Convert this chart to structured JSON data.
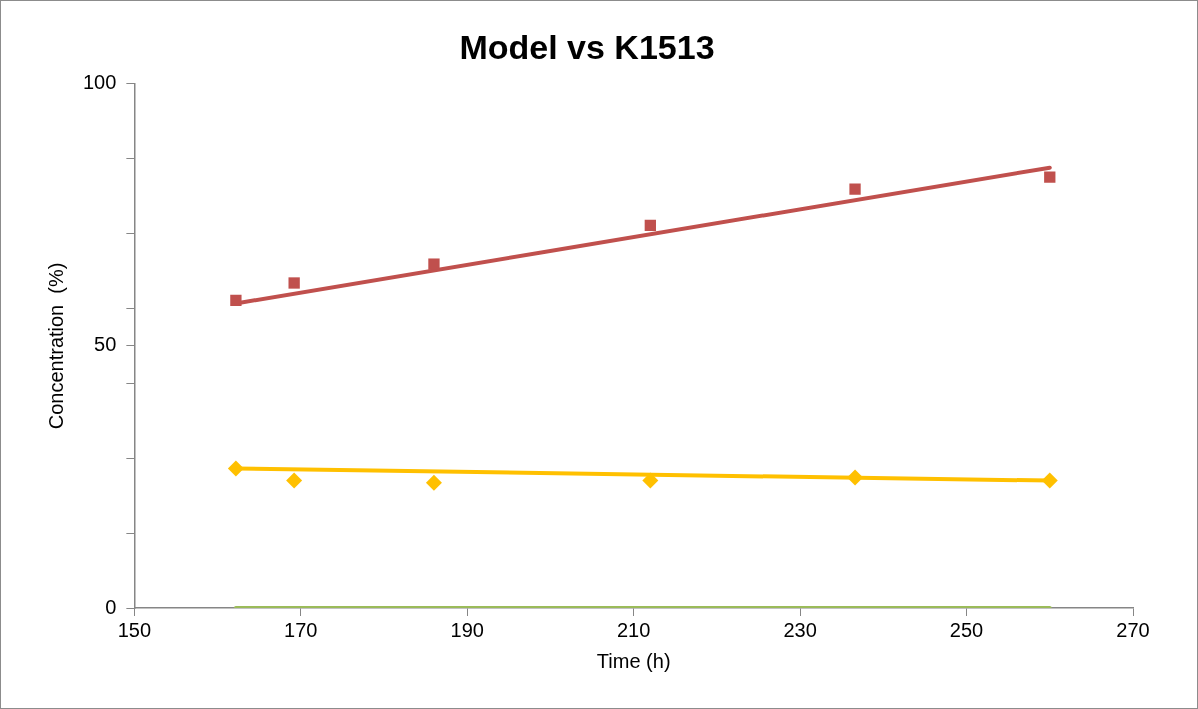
{
  "chart_data": {
    "type": "scatter",
    "title": "Model vs K1513",
    "xlabel": "Time (h)",
    "ylabel": "Concentration  (%)",
    "xlim": [
      150,
      270
    ],
    "xticks": [
      150,
      170,
      190,
      210,
      230,
      250,
      270
    ],
    "ylim": [
      0,
      100
    ],
    "yticks": [
      0,
      {
        "value": 14.29,
        "label": null
      },
      {
        "value": 28.57,
        "label": null
      },
      {
        "value": 42.86,
        "label": null
      },
      50,
      {
        "value": 57.14,
        "label": null
      },
      {
        "value": 71.43,
        "label": null
      },
      {
        "value": 85.71,
        "label": null
      },
      100
    ],
    "grid": false,
    "legend": false,
    "series": [
      {
        "marker": "square",
        "color": "#c0504d",
        "x": [
          162.2,
          169.2,
          186,
          212,
          236.6,
          260
        ],
        "values": [
          58.7,
          62,
          65.6,
          73,
          79.9,
          82.2
        ]
      },
      {
        "type": "line",
        "marker": "none",
        "color": "#c0504d",
        "x": [
          162.2,
          260
        ],
        "values": [
          58.1,
          84
        ]
      },
      {
        "marker": "diamond",
        "color": "#ffc000",
        "x": [
          162.2,
          169.2,
          186,
          212,
          236.6,
          260
        ],
        "values": [
          26.6,
          24.3,
          23.9,
          24.3,
          24.9,
          24.3
        ]
      },
      {
        "type": "line",
        "marker": "none",
        "color": "#ffc000",
        "x": [
          162.2,
          260
        ],
        "values": [
          26.6,
          24.3
        ]
      },
      {
        "type": "line",
        "marker": "none",
        "color": "#9bbb59",
        "x": [
          162.2,
          260
        ],
        "values": [
          0,
          0
        ]
      }
    ]
  }
}
